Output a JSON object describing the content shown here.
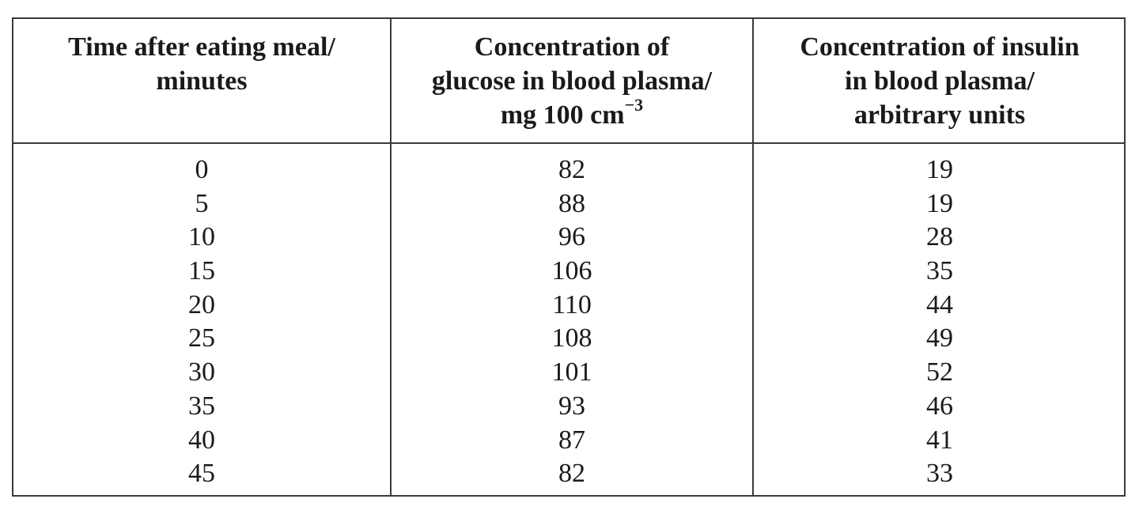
{
  "table": {
    "headers": [
      {
        "lines": [
          "Time after eating meal/",
          "minutes"
        ]
      },
      {
        "lines": [
          "Concentration of",
          "glucose in blood plasma/",
          "mg 100 cm"
        ],
        "superscript": "−3"
      },
      {
        "lines": [
          "Concentration of insulin",
          "in blood plasma/",
          "arbitrary units"
        ]
      }
    ],
    "rows": [
      [
        "0",
        "82",
        "19"
      ],
      [
        "5",
        "88",
        "19"
      ],
      [
        "10",
        "96",
        "28"
      ],
      [
        "15",
        "106",
        "35"
      ],
      [
        "20",
        "110",
        "44"
      ],
      [
        "25",
        "108",
        "49"
      ],
      [
        "30",
        "101",
        "52"
      ],
      [
        "35",
        "93",
        "46"
      ],
      [
        "40",
        "87",
        "41"
      ],
      [
        "45",
        "82",
        "33"
      ]
    ]
  }
}
